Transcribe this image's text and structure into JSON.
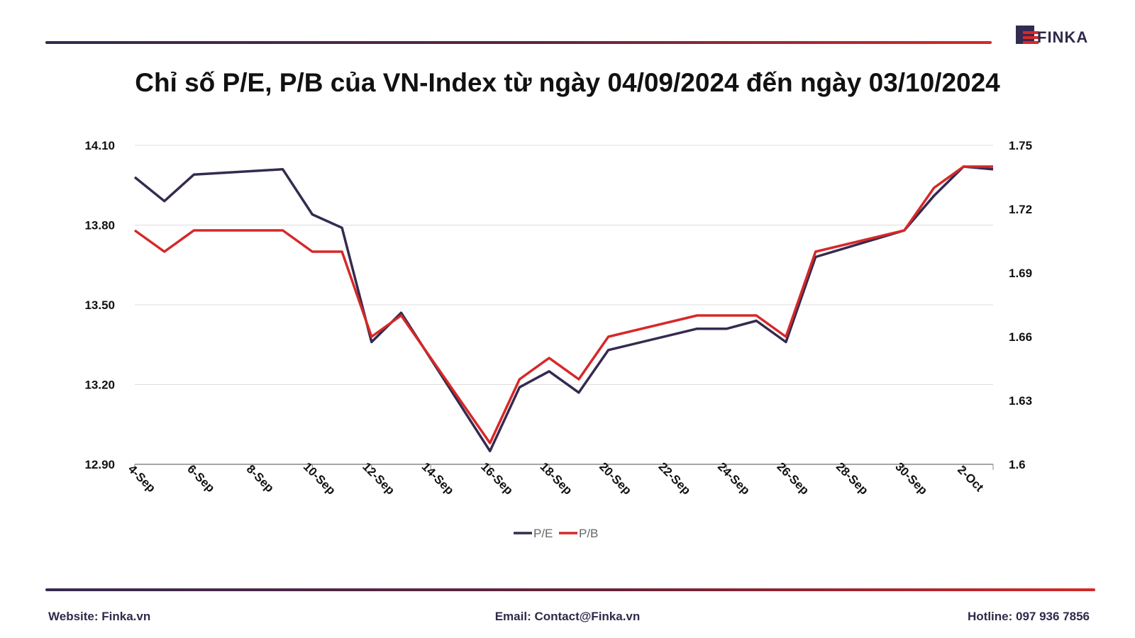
{
  "brand": {
    "name": "FINKA",
    "accent": "#d62828",
    "dark": "#352a4f"
  },
  "title": "Chỉ số P/E, P/B của VN-Index từ ngày 04/09/2024 đến ngày 03/10/2024",
  "footer": {
    "website": "Website: Finka.vn",
    "email": "Email: Contact@Finka.vn",
    "hotline": "Hotline: 097 936 7856"
  },
  "chart_data": {
    "type": "line",
    "title": "Chỉ số P/E, P/B của VN-Index từ ngày 04/09/2024 đến ngày 03/10/2024",
    "x": [
      "4-Sep",
      "5-Sep",
      "6-Sep",
      "9-Sep",
      "10-Sep",
      "11-Sep",
      "12-Sep",
      "13-Sep",
      "16-Sep",
      "17-Sep",
      "18-Sep",
      "19-Sep",
      "20-Sep",
      "23-Sep",
      "24-Sep",
      "25-Sep",
      "26-Sep",
      "27-Sep",
      "30-Sep",
      "1-Oct",
      "2-Oct",
      "3-Oct"
    ],
    "x_tick_labels": [
      "4-Sep",
      "6-Sep",
      "8-Sep",
      "10-Sep",
      "12-Sep",
      "14-Sep",
      "16-Sep",
      "18-Sep",
      "20-Sep",
      "22-Sep",
      "24-Sep",
      "26-Sep",
      "28-Sep",
      "30-Sep",
      "2-Oct"
    ],
    "x_range": [
      "4-Sep",
      "3-Oct"
    ],
    "y_left": {
      "ticks": [
        "14.10",
        "13.80",
        "13.50",
        "13.20",
        "12.90"
      ],
      "range": [
        12.9,
        14.1
      ]
    },
    "y_right": {
      "ticks": [
        "1.75",
        "1.72",
        "1.69",
        "1.66",
        "1.63",
        "1.6"
      ],
      "range": [
        1.6,
        1.75
      ]
    },
    "series": [
      {
        "name": "P/E",
        "axis": "left",
        "color": "#352a4f",
        "values": [
          13.98,
          13.89,
          13.99,
          14.01,
          13.84,
          13.79,
          13.36,
          13.47,
          12.95,
          13.19,
          13.25,
          13.17,
          13.33,
          13.41,
          13.41,
          13.44,
          13.36,
          13.68,
          13.78,
          13.91,
          14.02,
          14.01
        ]
      },
      {
        "name": "P/B",
        "axis": "right",
        "color": "#d62828",
        "values": [
          1.71,
          1.7,
          1.71,
          1.71,
          1.7,
          1.7,
          1.66,
          1.67,
          1.61,
          1.64,
          1.65,
          1.64,
          1.66,
          1.67,
          1.67,
          1.67,
          1.66,
          1.7,
          1.71,
          1.73,
          1.74,
          1.74
        ]
      }
    ],
    "legend": "bottom",
    "grid": true
  }
}
